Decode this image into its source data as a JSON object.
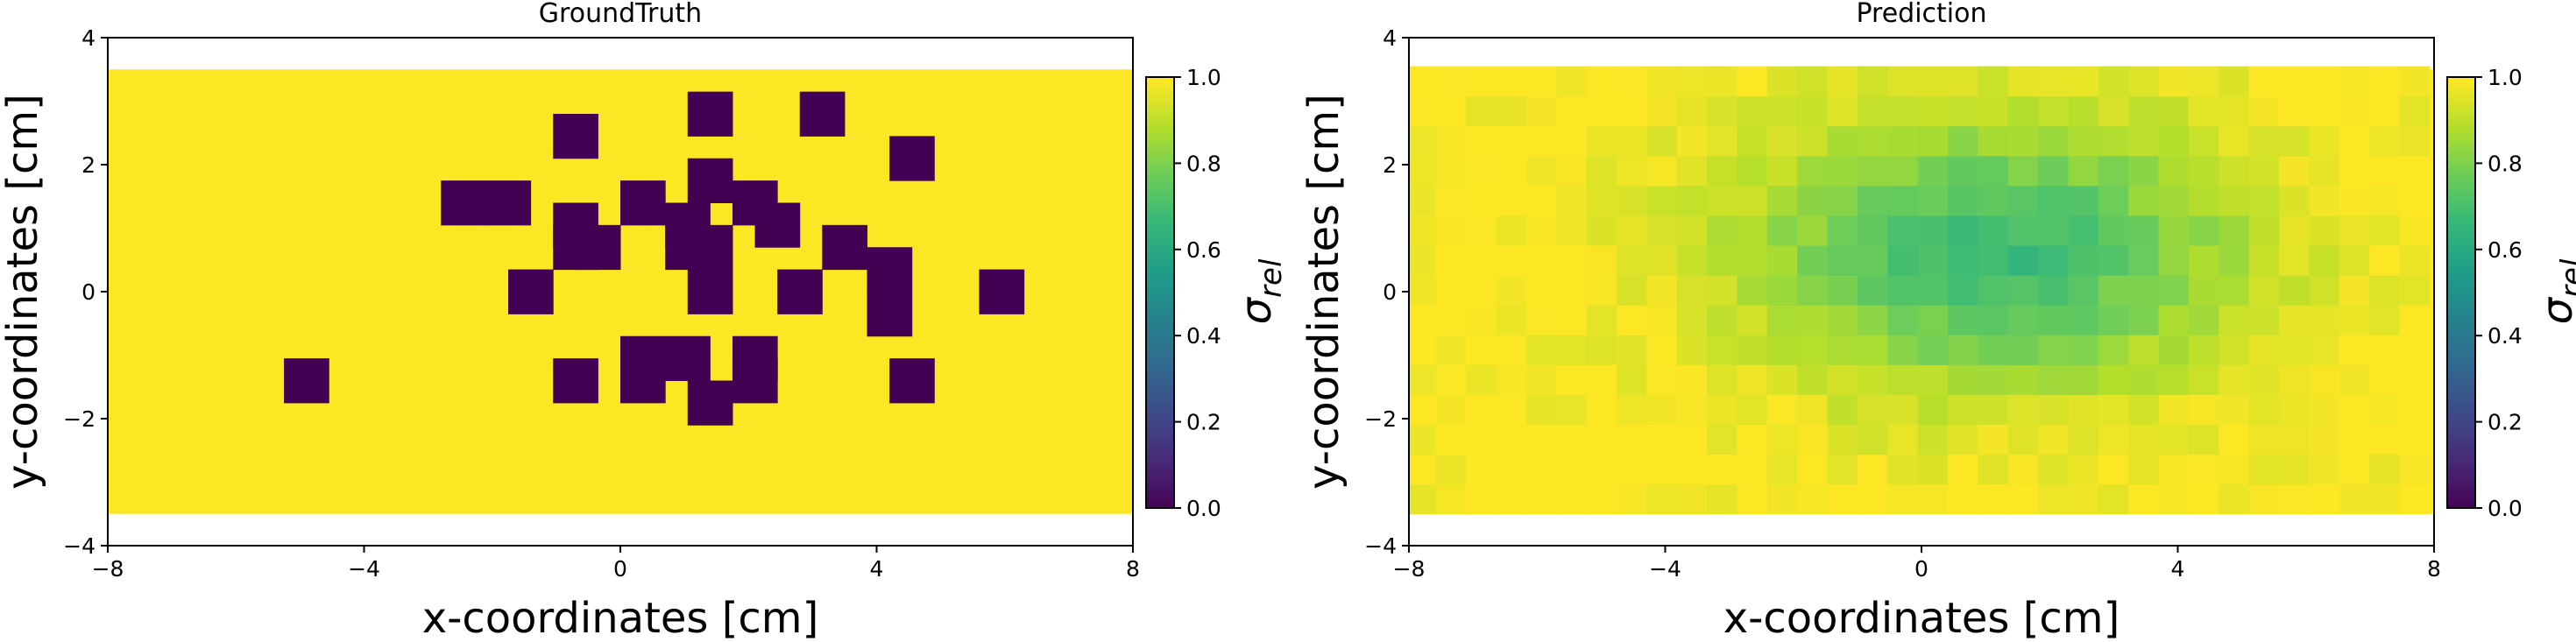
{
  "figure_colormap": "viridis",
  "chart_data": [
    {
      "type": "heatmap",
      "title": "GroundTruth",
      "xlabel": "x-coordinates [cm]",
      "ylabel": "y-coordinates [cm]",
      "xlim": [
        -8,
        8
      ],
      "ylim": [
        -4,
        4
      ],
      "xticks": [
        "−8",
        "−4",
        "0",
        "4",
        "8"
      ],
      "yticks": [
        "−4",
        "−2",
        "0",
        "2",
        "4"
      ],
      "grid": false,
      "colorbar": {
        "label_base": "σ",
        "label_sub": "rel",
        "range": [
          0,
          1
        ],
        "ticks": [
          "0.0",
          "0.2",
          "0.4",
          "0.6",
          "0.8",
          "1.0"
        ]
      },
      "cell_size_cm": [
        0.7,
        0.7
      ],
      "domain": {
        "x": [
          -8.05,
          8.05
        ],
        "y": [
          -3.5,
          3.5
        ]
      },
      "background_value": 1.0,
      "inclusions_value": 0.0,
      "inclusions": [
        [
          -4.9,
          -1.4
        ],
        [
          -2.45,
          1.4
        ],
        [
          -1.75,
          1.4
        ],
        [
          -1.4,
          0.0
        ],
        [
          -0.7,
          2.45
        ],
        [
          -0.7,
          0.7
        ],
        [
          -0.7,
          1.05
        ],
        [
          -0.7,
          -1.4
        ],
        [
          -0.35,
          0.7
        ],
        [
          0.35,
          -1.4
        ],
        [
          0.35,
          -1.05
        ],
        [
          0.35,
          1.4
        ],
        [
          1.05,
          0.7
        ],
        [
          1.05,
          1.05
        ],
        [
          1.05,
          -1.05
        ],
        [
          1.4,
          2.8
        ],
        [
          1.4,
          1.75
        ],
        [
          1.4,
          0.7
        ],
        [
          1.4,
          0.0
        ],
        [
          1.4,
          -1.75
        ],
        [
          2.1,
          -1.4
        ],
        [
          2.1,
          -1.05
        ],
        [
          2.1,
          1.4
        ],
        [
          2.45,
          1.05
        ],
        [
          2.8,
          0.0
        ],
        [
          3.15,
          2.8
        ],
        [
          3.5,
          0.7
        ],
        [
          4.2,
          0.35
        ],
        [
          4.2,
          -0.35
        ],
        [
          4.55,
          2.1
        ],
        [
          4.55,
          -1.4
        ],
        [
          5.95,
          0.0
        ]
      ]
    },
    {
      "type": "heatmap",
      "title": "Prediction",
      "xlabel": "x-coordinates [cm]",
      "ylabel": "y-coordinates [cm]",
      "xlim": [
        -8,
        8
      ],
      "ylim": [
        -4,
        4
      ],
      "xticks": [
        "−8",
        "−4",
        "0",
        "4",
        "8"
      ],
      "yticks": [
        "−4",
        "−2",
        "0",
        "2",
        "4"
      ],
      "grid": false,
      "colorbar": {
        "label_base": "σ",
        "label_sub": "rel",
        "range": [
          0,
          1
        ],
        "ticks": [
          "0.0",
          "0.2",
          "0.4",
          "0.6",
          "0.8",
          "1.0"
        ]
      },
      "cell_size_cm": [
        0.47,
        0.47
      ],
      "domain": {
        "x": [
          -8.05,
          8.05
        ],
        "y": [
          -3.5,
          3.5
        ]
      },
      "background_value": 1.0,
      "center_min_value": 0.68,
      "min_location": [
        1.1,
        0.6
      ],
      "spread_cm": [
        3.8,
        2.1
      ]
    }
  ]
}
